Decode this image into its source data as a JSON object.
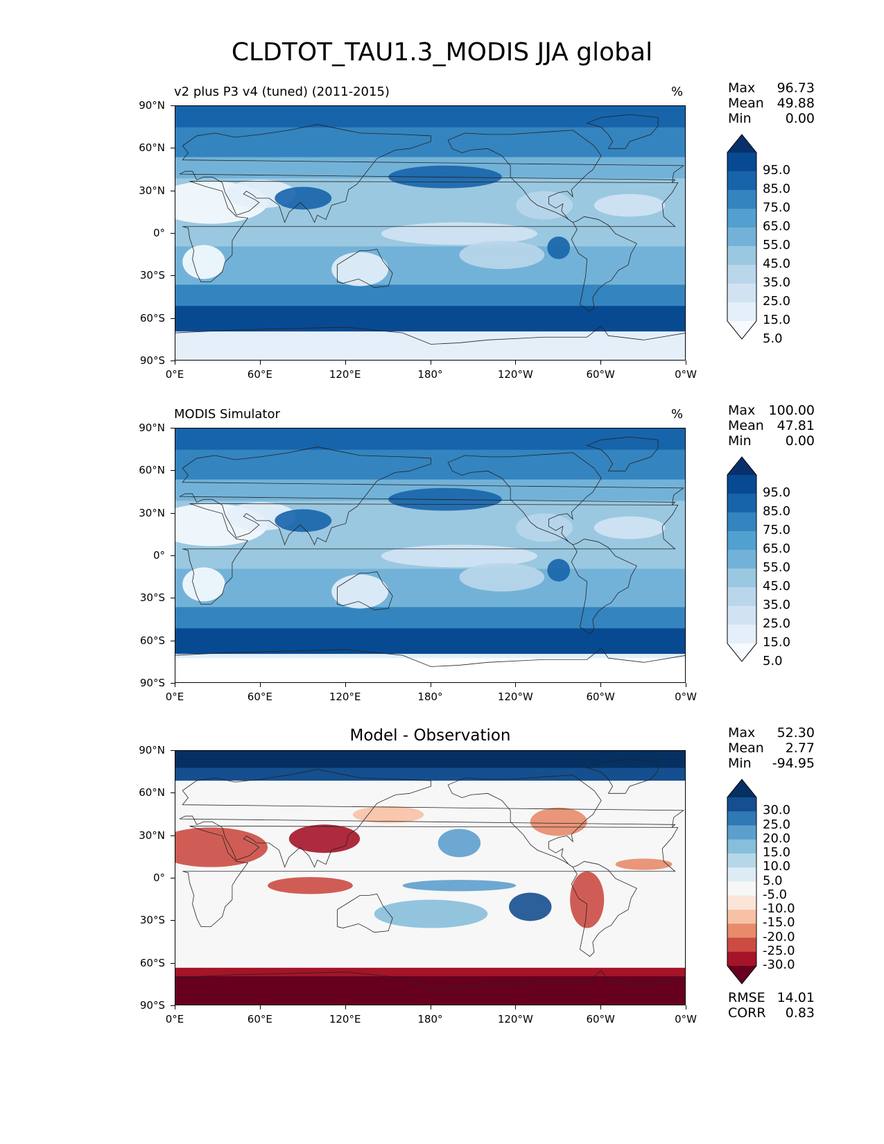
{
  "figure_title": "CLDTOT_TAU1.3_MODIS JJA global",
  "lat_ticks": [
    "90°N",
    "60°N",
    "30°N",
    "0°",
    "30°S",
    "60°S",
    "90°S"
  ],
  "lon_ticks": [
    "0°E",
    "60°E",
    "120°E",
    "180°",
    "120°W",
    "60°W",
    "0°W"
  ],
  "panels": [
    {
      "title": "v2 plus P3 v4 (tuned) (2011-2015)",
      "units": "%",
      "stats": {
        "max_label": "Max",
        "max": "96.73",
        "mean_label": "Mean",
        "mean": "49.88",
        "min_label": "Min",
        "min": "0.00"
      },
      "colorbar_labels": [
        "95.0",
        "85.0",
        "75.0",
        "65.0",
        "55.0",
        "45.0",
        "35.0",
        "25.0",
        "15.0",
        "5.0"
      ]
    },
    {
      "title": "MODIS Simulator",
      "units": "%",
      "stats": {
        "max_label": "Max",
        "max": "100.00",
        "mean_label": "Mean",
        "mean": "47.81",
        "min_label": "Min",
        "min": "0.00"
      },
      "colorbar_labels": [
        "95.0",
        "85.0",
        "75.0",
        "65.0",
        "55.0",
        "45.0",
        "35.0",
        "25.0",
        "15.0",
        "5.0"
      ]
    },
    {
      "title": "Model - Observation",
      "units": "",
      "stats": {
        "max_label": "Max",
        "max": "52.30",
        "mean_label": "Mean",
        "mean": "2.77",
        "min_label": "Min",
        "min": "-94.95"
      },
      "colorbar_labels": [
        "30.0",
        "25.0",
        "20.0",
        "15.0",
        "10.0",
        "5.0",
        "-5.0",
        "-10.0",
        "-15.0",
        "-20.0",
        "-25.0",
        "-30.0"
      ],
      "metrics": {
        "rmse_label": "RMSE",
        "rmse": "14.01",
        "corr_label": "CORR",
        "corr": "0.83"
      }
    }
  ],
  "colors": {
    "blues": [
      "#f7fbff",
      "#e4eff9",
      "#d1e3f3",
      "#bad6eb",
      "#9ac8e0",
      "#73b2d8",
      "#52a0cf",
      "#3484bf",
      "#1764ab",
      "#084a92",
      "#08306b"
    ],
    "diff": [
      "#67001f",
      "#a51429",
      "#cb4b43",
      "#e78b6b",
      "#f7c1a5",
      "#fbe5d8",
      "#f7f7f7",
      "#ddecf4",
      "#b6d7e8",
      "#87beda",
      "#5c9fcc",
      "#2f79b5",
      "#154f8f",
      "#053061"
    ]
  }
}
